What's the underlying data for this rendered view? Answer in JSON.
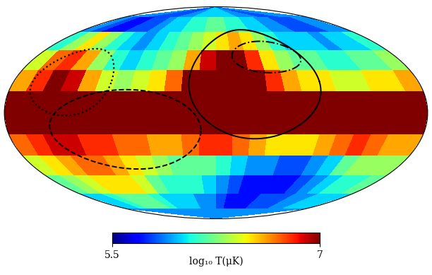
{
  "chart_data": {
    "type": "heatmap",
    "color": "jet",
    "tick_labels": false,
    "grid": false,
    "x": [
      -180,
      -165,
      -150,
      -135,
      -120,
      -105,
      -90,
      -75,
      -60,
      -45,
      -30,
      -15,
      0,
      15,
      30,
      45,
      60,
      75,
      90,
      105,
      120,
      135,
      150,
      165,
      180
    ],
    "y": [
      90,
      75,
      60,
      45,
      30,
      15,
      0,
      -15,
      -30,
      -45,
      -60,
      -75,
      -90
    ],
    "cells": [
      [
        5.9,
        5.9,
        5.9,
        5.8,
        5.8,
        5.8,
        5.8,
        5.9,
        5.9,
        6.0,
        6.0,
        6.0,
        6.0,
        6.0,
        6.0,
        5.9,
        5.9,
        5.9,
        5.8,
        5.8,
        5.8,
        5.9,
        5.9,
        5.9
      ],
      [
        5.9,
        5.8,
        5.7,
        5.7,
        5.8,
        5.8,
        5.9,
        6.0,
        6.0,
        6.1,
        6.1,
        6.2,
        6.2,
        6.1,
        6.1,
        6.0,
        6.0,
        5.9,
        5.9,
        5.8,
        5.8,
        5.8,
        5.9,
        5.9
      ],
      [
        6.1,
        6.3,
        6.5,
        6.3,
        6.1,
        6.0,
        5.9,
        6.0,
        6.1,
        6.2,
        6.3,
        6.4,
        6.5,
        6.6,
        6.5,
        6.3,
        6.1,
        6.0,
        6.0,
        6.0,
        5.9,
        6.0,
        6.0,
        6.1
      ],
      [
        6.4,
        6.7,
        6.8,
        6.6,
        6.3,
        6.1,
        6.0,
        6.1,
        6.2,
        6.3,
        6.6,
        6.9,
        7.0,
        7.0,
        6.8,
        6.5,
        6.3,
        6.2,
        6.2,
        6.1,
        6.1,
        6.2,
        6.2,
        6.3
      ],
      [
        6.6,
        6.8,
        7.0,
        6.9,
        6.6,
        6.4,
        6.3,
        6.4,
        6.5,
        6.7,
        7.0,
        7.0,
        7.0,
        7.0,
        7.0,
        6.8,
        6.6,
        6.5,
        6.5,
        6.4,
        6.4,
        6.5,
        6.5,
        6.6
      ],
      [
        7.0,
        7.0,
        7.0,
        7.0,
        7.0,
        7.0,
        7.0,
        7.0,
        7.0,
        7.0,
        7.0,
        7.0,
        7.0,
        7.0,
        7.0,
        7.0,
        7.0,
        7.0,
        7.0,
        7.0,
        7.0,
        7.0,
        7.0,
        7.0
      ],
      [
        7.0,
        7.0,
        7.0,
        7.0,
        7.0,
        7.0,
        7.0,
        7.0,
        7.0,
        7.0,
        7.0,
        7.0,
        7.0,
        7.0,
        7.0,
        7.0,
        7.0,
        7.0,
        7.0,
        7.0,
        7.0,
        7.0,
        7.0,
        7.0
      ],
      [
        6.7,
        6.8,
        6.9,
        6.9,
        6.8,
        6.8,
        6.7,
        6.7,
        6.6,
        6.6,
        6.7,
        6.8,
        6.8,
        6.7,
        6.6,
        6.5,
        6.5,
        6.5,
        6.6,
        6.7,
        6.8,
        6.7,
        6.6,
        6.6
      ],
      [
        6.4,
        6.5,
        6.6,
        6.7,
        6.7,
        6.6,
        6.5,
        6.4,
        6.3,
        6.2,
        6.2,
        6.2,
        6.1,
        6.0,
        5.9,
        5.9,
        5.8,
        5.8,
        5.9,
        6.0,
        6.2,
        6.3,
        6.3,
        6.3
      ],
      [
        6.2,
        6.3,
        6.4,
        6.5,
        6.5,
        6.5,
        6.4,
        6.2,
        6.1,
        6.1,
        6.1,
        6.0,
        5.9,
        5.8,
        5.7,
        5.7,
        5.7,
        5.7,
        5.8,
        5.9,
        6.0,
        6.1,
        6.1,
        6.2
      ],
      [
        6.0,
        6.0,
        6.1,
        6.2,
        6.2,
        6.2,
        6.1,
        6.0,
        6.0,
        6.0,
        5.9,
        5.9,
        5.8,
        5.7,
        5.7,
        5.7,
        5.8,
        5.8,
        5.8,
        5.9,
        5.9,
        6.0,
        6.0,
        6.0
      ],
      [
        5.9,
        5.9,
        5.9,
        5.9,
        5.9,
        5.9,
        5.9,
        5.9,
        5.9,
        5.9,
        5.9,
        5.9,
        5.9,
        5.9,
        5.9,
        5.9,
        5.9,
        5.9,
        5.9,
        5.9,
        5.9,
        5.9,
        5.9,
        5.9
      ]
    ],
    "colorbar": {
      "range": [
        5.5,
        7
      ],
      "ticks": [
        5.5,
        7
      ],
      "label": "log₁₀ T(μK)"
    }
  }
}
